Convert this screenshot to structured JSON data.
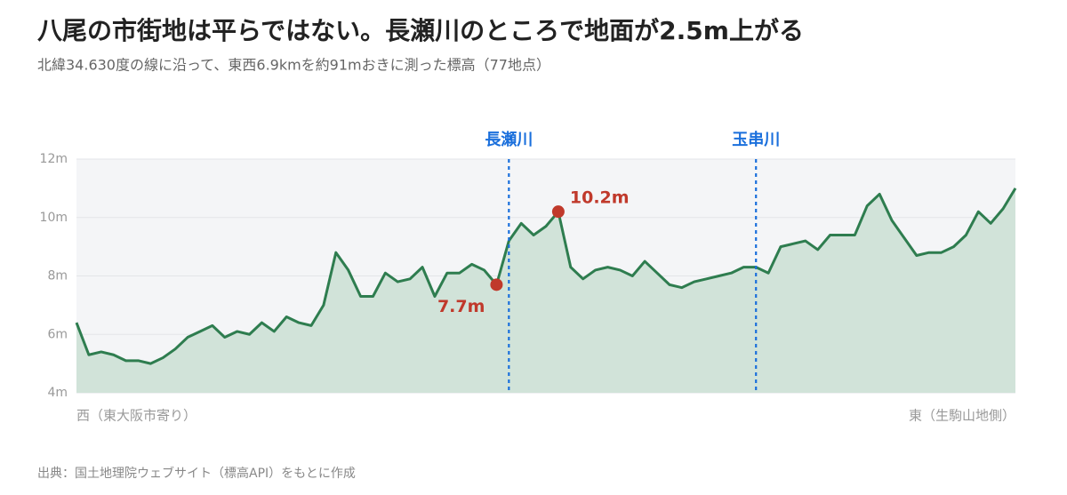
{
  "chart_data": {
    "type": "area",
    "title": "八尾の市街地は平らではない。長瀬川のところで地面が2.5m上がる",
    "subtitle": "北緯34.630度の線に沿って、東西6.9kmを約91mおきに測った標高（77地点）",
    "source": "出典：国土地理院ウェブサイト（標高API）をもとに作成",
    "categories": [
      "西（東大阪市寄り）",
      null,
      null,
      null,
      null,
      null,
      null,
      null,
      null,
      null,
      null,
      null,
      null,
      null,
      null,
      null,
      null,
      null,
      null,
      null,
      null,
      null,
      null,
      null,
      null,
      null,
      null,
      null,
      null,
      null,
      null,
      null,
      null,
      null,
      null,
      null,
      null,
      null,
      null,
      null,
      null,
      null,
      null,
      null,
      null,
      null,
      null,
      null,
      null,
      null,
      null,
      null,
      null,
      null,
      null,
      null,
      null,
      null,
      null,
      null,
      null,
      null,
      null,
      null,
      null,
      null,
      null,
      null,
      null,
      null,
      null,
      null,
      null,
      null,
      null,
      null,
      "東（生駒山地側）"
    ],
    "series": [
      {
        "color": "#2e7d4f",
        "fill": "#d1e3d9",
        "marker_color": "#c0392b",
        "values": [
          6.4,
          5.3,
          5.4,
          5.3,
          5.1,
          5.1,
          5.0,
          5.2,
          5.5,
          5.9,
          6.1,
          6.3,
          5.9,
          6.1,
          6.0,
          6.4,
          6.1,
          6.6,
          6.4,
          6.3,
          7.0,
          8.8,
          8.2,
          7.3,
          7.3,
          8.1,
          7.8,
          7.9,
          8.3,
          7.3,
          8.1,
          8.1,
          8.4,
          8.2,
          7.7,
          9.2,
          9.8,
          9.4,
          9.7,
          10.2,
          8.3,
          7.9,
          8.2,
          8.3,
          8.2,
          8.0,
          8.5,
          8.1,
          7.7,
          7.6,
          7.8,
          7.9,
          8.0,
          8.1,
          8.3,
          8.3,
          8.1,
          9.0,
          9.1,
          9.2,
          8.9,
          9.4,
          9.4,
          9.4,
          10.4,
          10.8,
          9.9,
          9.3,
          8.7,
          8.8,
          8.8,
          9.0,
          9.4,
          10.2,
          9.8,
          10.3,
          11.0
        ],
        "value_labels": [
          null,
          null,
          null,
          null,
          null,
          null,
          null,
          null,
          null,
          null,
          null,
          null,
          null,
          null,
          null,
          null,
          null,
          null,
          null,
          null,
          null,
          null,
          null,
          null,
          null,
          null,
          null,
          null,
          null,
          null,
          null,
          null,
          null,
          null,
          "7.7m",
          null,
          null,
          null,
          null,
          "10.2m",
          null,
          null,
          null,
          null,
          null,
          null,
          null,
          null,
          null,
          null,
          null,
          null,
          null,
          null,
          null,
          null,
          null,
          null,
          null,
          null,
          null,
          null,
          null,
          null,
          null,
          null,
          null,
          null,
          null,
          null,
          null,
          null,
          null,
          null,
          null,
          null,
          null
        ]
      }
    ],
    "vlines": [
      {
        "label": "長瀬川",
        "index": 35,
        "color": "#1a6fdc"
      },
      {
        "label": "玉串川",
        "index": 55,
        "color": "#1a6fdc"
      }
    ],
    "ylim": [
      4,
      12
    ],
    "yticks": [
      {
        "value": 4,
        "label": "4m"
      },
      {
        "value": 6,
        "label": "6m"
      },
      {
        "value": 8,
        "label": "8m"
      },
      {
        "value": 10,
        "label": "10m"
      },
      {
        "value": 12,
        "label": "12m"
      }
    ],
    "grid": true
  }
}
